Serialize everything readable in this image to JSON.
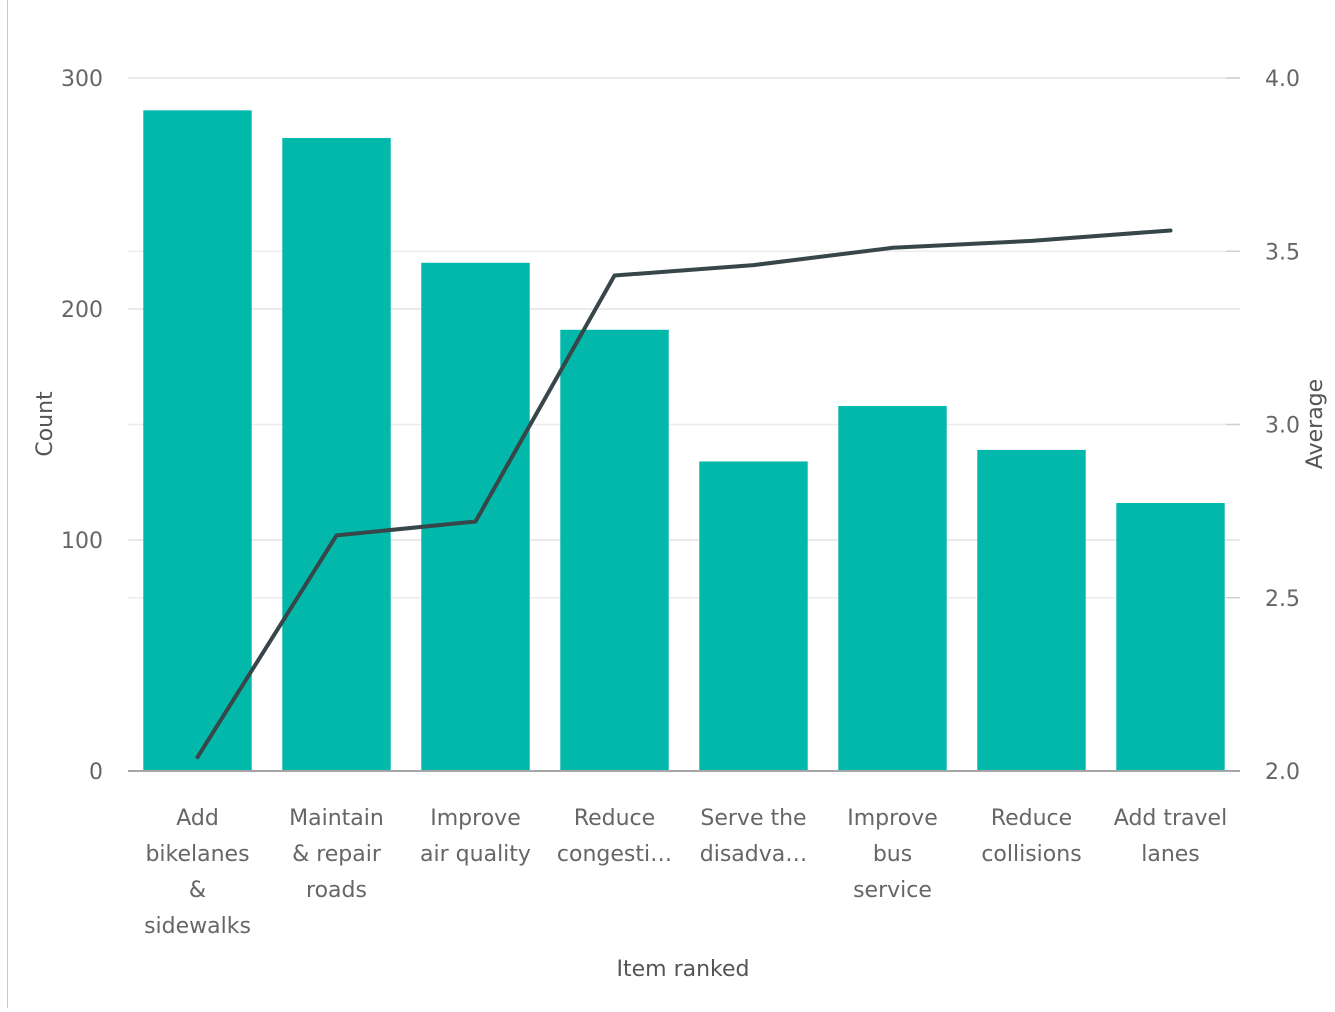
{
  "chart_data": {
    "type": "bar",
    "title": "",
    "xlabel": "Item ranked",
    "ylabel": "Count",
    "y2label": "Average",
    "ylim": [
      0,
      300
    ],
    "y2lim": [
      2.0,
      4.0
    ],
    "yticks": [
      "0",
      "100",
      "200",
      "300"
    ],
    "y2ticks": [
      "2.0",
      "2.5",
      "3.0",
      "3.5",
      "4.0"
    ],
    "grid": true,
    "legend": "none",
    "categories": [
      "Add bikelanes & sidewalks",
      "Maintain & repair roads",
      "Improve air quality",
      "Reduce congesti…",
      "Serve the disadva…",
      "Improve bus service",
      "Reduce collisions",
      "Add travel lanes"
    ],
    "category_lines": [
      [
        "Add",
        "bikelanes",
        "&",
        "sidewalks"
      ],
      [
        "Maintain",
        "& repair",
        "roads"
      ],
      [
        "Improve",
        "air quality"
      ],
      [
        "Reduce",
        "congesti…"
      ],
      [
        "Serve the",
        "disadva…"
      ],
      [
        "Improve",
        "bus",
        "service"
      ],
      [
        "Reduce",
        "collisions"
      ],
      [
        "Add travel",
        "lanes"
      ]
    ],
    "series": [
      {
        "type": "bar",
        "axis": "left",
        "color": "#01b8aa",
        "values": [
          286,
          274,
          220,
          191,
          134,
          158,
          139,
          116
        ]
      },
      {
        "type": "line",
        "axis": "right",
        "color": "#374649",
        "values": [
          2.04,
          2.68,
          2.72,
          3.43,
          3.46,
          3.51,
          3.53,
          3.56
        ]
      }
    ]
  }
}
